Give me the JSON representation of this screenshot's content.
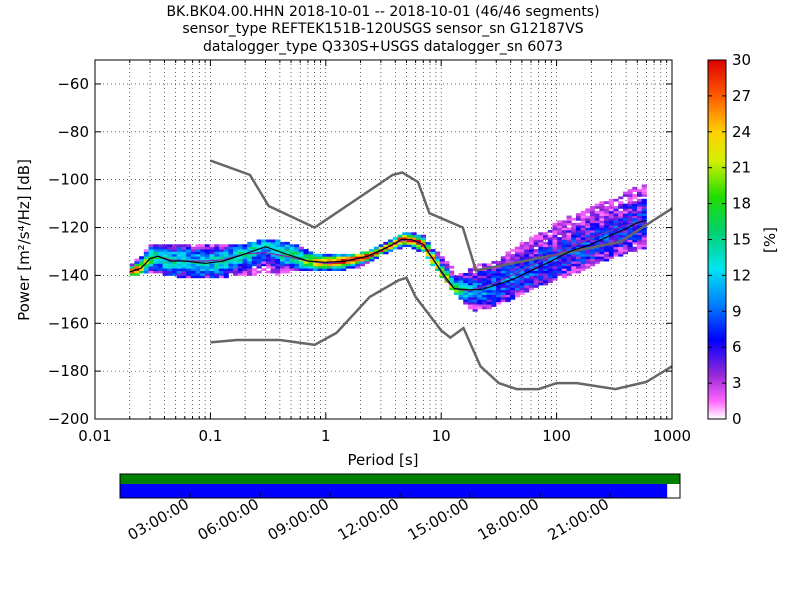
{
  "title_lines": [
    "BK.BK04.00.HHN   2018-10-01 -- 2018-10-01  (46/46 segments)",
    "sensor_type REFTEK151B-120USGS sensor_sn G12187VS",
    "datalogger_type Q330S+USGS datalogger_sn 6073"
  ],
  "chart_data": {
    "type": "heatmap",
    "title": "BK.BK04.00.HHN   2018-10-01 -- 2018-10-01  (46/46 segments)",
    "xlabel": "Period [s]",
    "ylabel": "Power [m²/s⁴/Hz] [dB]",
    "xscale": "log",
    "xlim": [
      0.01,
      1000
    ],
    "ylim": [
      -200,
      -50
    ],
    "x_tick_labels": [
      "0.01",
      "0.1",
      "1",
      "10",
      "100",
      "1000"
    ],
    "x_ticks": [
      0.01,
      0.1,
      1,
      10,
      100,
      1000
    ],
    "y_tick_labels": [
      "−60",
      "−80",
      "−100",
      "−120",
      "−140",
      "−160",
      "−180",
      "−200"
    ],
    "y_ticks": [
      -60,
      -80,
      -100,
      -120,
      -140,
      -160,
      -180,
      -200
    ],
    "grid": true,
    "colorbar": {
      "label": "[%]",
      "min": 0,
      "max": 30,
      "tick_labels": [
        "0",
        "3",
        "6",
        "9",
        "12",
        "15",
        "18",
        "21",
        "24",
        "27",
        "30"
      ],
      "ticks": [
        0,
        3,
        6,
        9,
        12,
        15,
        18,
        21,
        24,
        27,
        30
      ]
    },
    "noise_models": {
      "nhnm": {
        "name": "NHNM",
        "points": [
          [
            0.1,
            -92
          ],
          [
            0.22,
            -98
          ],
          [
            0.32,
            -111
          ],
          [
            0.8,
            -120
          ],
          [
            3.8,
            -98
          ],
          [
            4.6,
            -97
          ],
          [
            6.3,
            -101
          ],
          [
            7.9,
            -114
          ],
          [
            15.4,
            -120
          ],
          [
            20,
            -138
          ],
          [
            354.8,
            -126
          ],
          [
            1000,
            -112
          ]
        ]
      },
      "nlnm": {
        "name": "NLNM",
        "points": [
          [
            0.1,
            -168
          ],
          [
            0.17,
            -167
          ],
          [
            0.4,
            -167
          ],
          [
            0.8,
            -169
          ],
          [
            1.24,
            -164
          ],
          [
            2.4,
            -149
          ],
          [
            4.3,
            -142
          ],
          [
            5,
            -141
          ],
          [
            6,
            -149
          ],
          [
            10,
            -163
          ],
          [
            12,
            -166
          ],
          [
            15.6,
            -162
          ],
          [
            21.9,
            -178
          ],
          [
            31.6,
            -185
          ],
          [
            45,
            -187.5
          ],
          [
            70,
            -187.5
          ],
          [
            100,
            -185
          ],
          [
            150,
            -185
          ],
          [
            323,
            -187.5
          ],
          [
            600,
            -184.5
          ],
          [
            1000,
            -178
          ]
        ]
      }
    },
    "mode": {
      "name": "mode",
      "color": "#000000",
      "points": [
        [
          0.02,
          -138.5
        ],
        [
          0.025,
          -137
        ],
        [
          0.03,
          -133
        ],
        [
          0.035,
          -132
        ],
        [
          0.045,
          -134
        ],
        [
          0.06,
          -134
        ],
        [
          0.09,
          -135
        ],
        [
          0.13,
          -134
        ],
        [
          0.2,
          -131
        ],
        [
          0.3,
          -128
        ],
        [
          0.45,
          -131
        ],
        [
          0.7,
          -134
        ],
        [
          1.0,
          -134.5
        ],
        [
          1.5,
          -134
        ],
        [
          2.3,
          -132
        ],
        [
          3.5,
          -128
        ],
        [
          4.5,
          -125
        ],
        [
          5.5,
          -125
        ],
        [
          7.0,
          -127
        ],
        [
          9.0,
          -135
        ],
        [
          11,
          -141
        ],
        [
          13,
          -145.5
        ],
        [
          17,
          -146
        ],
        [
          22,
          -146
        ],
        [
          30,
          -144
        ],
        [
          45,
          -141
        ],
        [
          60,
          -138
        ],
        [
          90,
          -134
        ],
        [
          130,
          -130
        ],
        [
          200,
          -127
        ],
        [
          300,
          -123
        ],
        [
          400,
          -120.5
        ],
        [
          500,
          -118
        ],
        [
          600,
          -117
        ]
      ]
    },
    "mean": {
      "name": "mean",
      "color": "#7b2db0",
      "points": [
        [
          0.02,
          -138.5
        ],
        [
          0.025,
          -137
        ],
        [
          0.03,
          -133
        ],
        [
          0.035,
          -132
        ],
        [
          0.045,
          -133.5
        ],
        [
          0.06,
          -134
        ],
        [
          0.09,
          -134
        ],
        [
          0.13,
          -133.5
        ],
        [
          0.2,
          -131
        ],
        [
          0.3,
          -130.5
        ],
        [
          0.45,
          -132
        ],
        [
          0.7,
          -134
        ],
        [
          1.0,
          -135
        ],
        [
          1.5,
          -134
        ],
        [
          2.3,
          -132
        ],
        [
          3.5,
          -128
        ],
        [
          4.5,
          -125.5
        ],
        [
          5.5,
          -125
        ],
        [
          7.0,
          -127.5
        ],
        [
          9.0,
          -135
        ],
        [
          11,
          -142
        ],
        [
          13,
          -145.5
        ],
        [
          17,
          -146.5
        ],
        [
          22,
          -145
        ],
        [
          30,
          -143
        ],
        [
          45,
          -139
        ],
        [
          60,
          -136
        ],
        [
          90,
          -132
        ],
        [
          130,
          -128.5
        ],
        [
          200,
          -124.5
        ],
        [
          300,
          -121
        ],
        [
          400,
          -119
        ],
        [
          500,
          -118
        ],
        [
          600,
          -117.5
        ]
      ]
    },
    "density_envelope": {
      "periods": [
        0.02,
        0.03,
        0.05,
        0.1,
        0.2,
        0.3,
        0.5,
        0.8,
        1.2,
        2,
        3,
        5,
        7,
        10,
        14,
        20,
        30,
        50,
        80,
        120,
        200,
        300,
        450,
        600
      ],
      "upper_db": [
        -137,
        -128,
        -127,
        -127,
        -127,
        -125,
        -127,
        -131,
        -132,
        -131,
        -128,
        -122,
        -124,
        -132,
        -140,
        -136,
        -134,
        -127,
        -121,
        -116,
        -112,
        -108,
        -104,
        -101
      ],
      "lower_db": [
        -140,
        -138,
        -140,
        -141,
        -139,
        -140,
        -138,
        -138,
        -138,
        -136,
        -131,
        -127,
        -130,
        -140,
        -149,
        -155,
        -152,
        -148,
        -143,
        -140,
        -136,
        -132,
        -130,
        -128
      ]
    }
  },
  "time_bar": {
    "tick_labels": [
      "03:00:00",
      "06:00:00",
      "09:00:00",
      "12:00:00",
      "15:00:00",
      "18:00:00",
      "21:00:00"
    ],
    "tick_hours": [
      3,
      6,
      9,
      12,
      15,
      18,
      21
    ],
    "range_hours": [
      0,
      24
    ],
    "data_coverage_end_hour": 23.45,
    "colors": {
      "data_available": "#008000",
      "data_used": "#0000ff",
      "background": "#ffffff"
    }
  }
}
